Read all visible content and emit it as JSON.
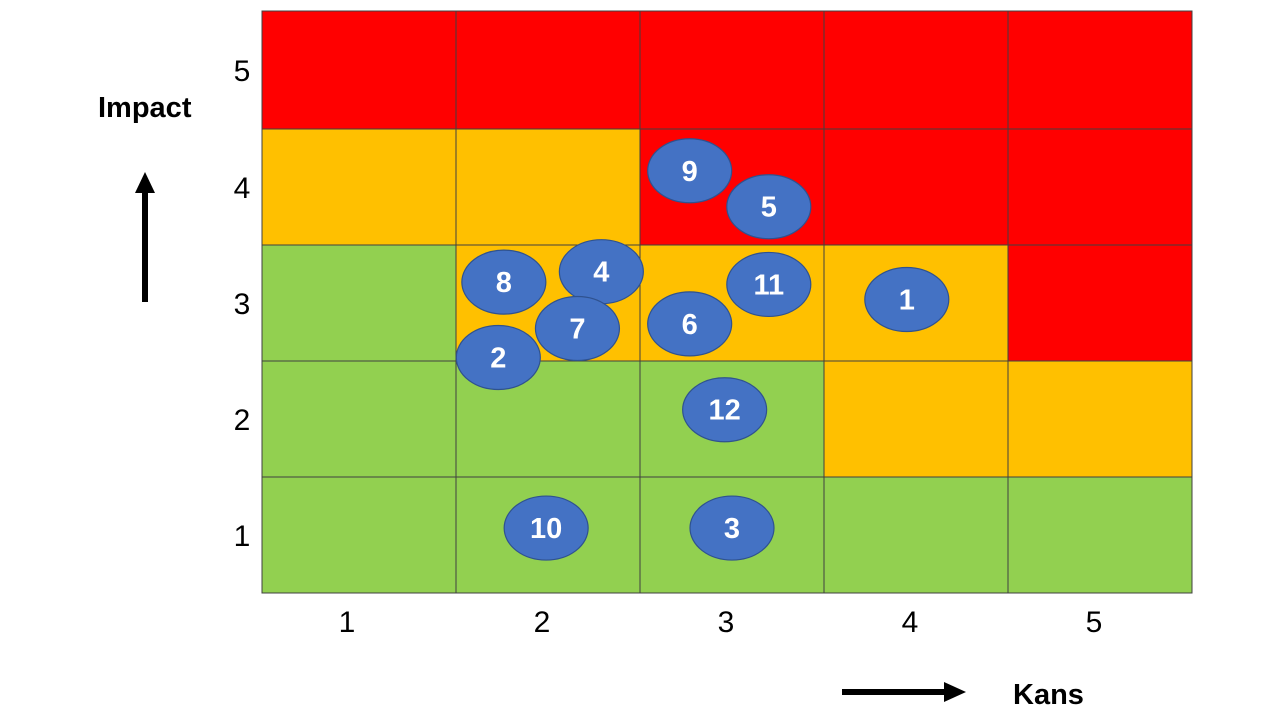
{
  "chart_data": {
    "type": "heatmap",
    "title": "",
    "xlabel": "Kans",
    "ylabel": "Impact",
    "x_ticks": [
      "1",
      "2",
      "3",
      "4",
      "5"
    ],
    "y_ticks": [
      "1",
      "2",
      "3",
      "4",
      "5"
    ],
    "xlim": [
      0.5,
      5.5
    ],
    "ylim": [
      0.5,
      5.5
    ],
    "colors": {
      "high": "#FF0000",
      "medium": "#FFC000",
      "low": "#92D050",
      "bubble": "#4472C4",
      "bubble_border": "#2F528F",
      "grid": "#404040"
    },
    "cells_by_impact_top_to_bottom": [
      [
        "high",
        "high",
        "high",
        "high",
        "high"
      ],
      [
        "medium",
        "medium",
        "high",
        "high",
        "high"
      ],
      [
        "low",
        "medium",
        "medium",
        "medium",
        "high"
      ],
      [
        "low",
        "low",
        "low",
        "medium",
        "medium"
      ],
      [
        "low",
        "low",
        "low",
        "low",
        "low"
      ]
    ],
    "risks": [
      {
        "label": "9",
        "kans": 2.77,
        "impact": 4.14
      },
      {
        "label": "5",
        "kans": 3.2,
        "impact": 3.83
      },
      {
        "label": "8",
        "kans": 1.76,
        "impact": 3.18
      },
      {
        "label": "4",
        "kans": 2.29,
        "impact": 3.27
      },
      {
        "label": "11",
        "kans": 3.2,
        "impact": 3.16
      },
      {
        "label": "1",
        "kans": 3.95,
        "impact": 3.03
      },
      {
        "label": "7",
        "kans": 2.16,
        "impact": 2.78
      },
      {
        "label": "6",
        "kans": 2.77,
        "impact": 2.82
      },
      {
        "label": "2",
        "kans": 1.73,
        "impact": 2.53
      },
      {
        "label": "12",
        "kans": 2.96,
        "impact": 2.08
      },
      {
        "label": "10",
        "kans": 1.99,
        "impact": 1.06
      },
      {
        "label": "3",
        "kans": 3.0,
        "impact": 1.06
      }
    ]
  }
}
